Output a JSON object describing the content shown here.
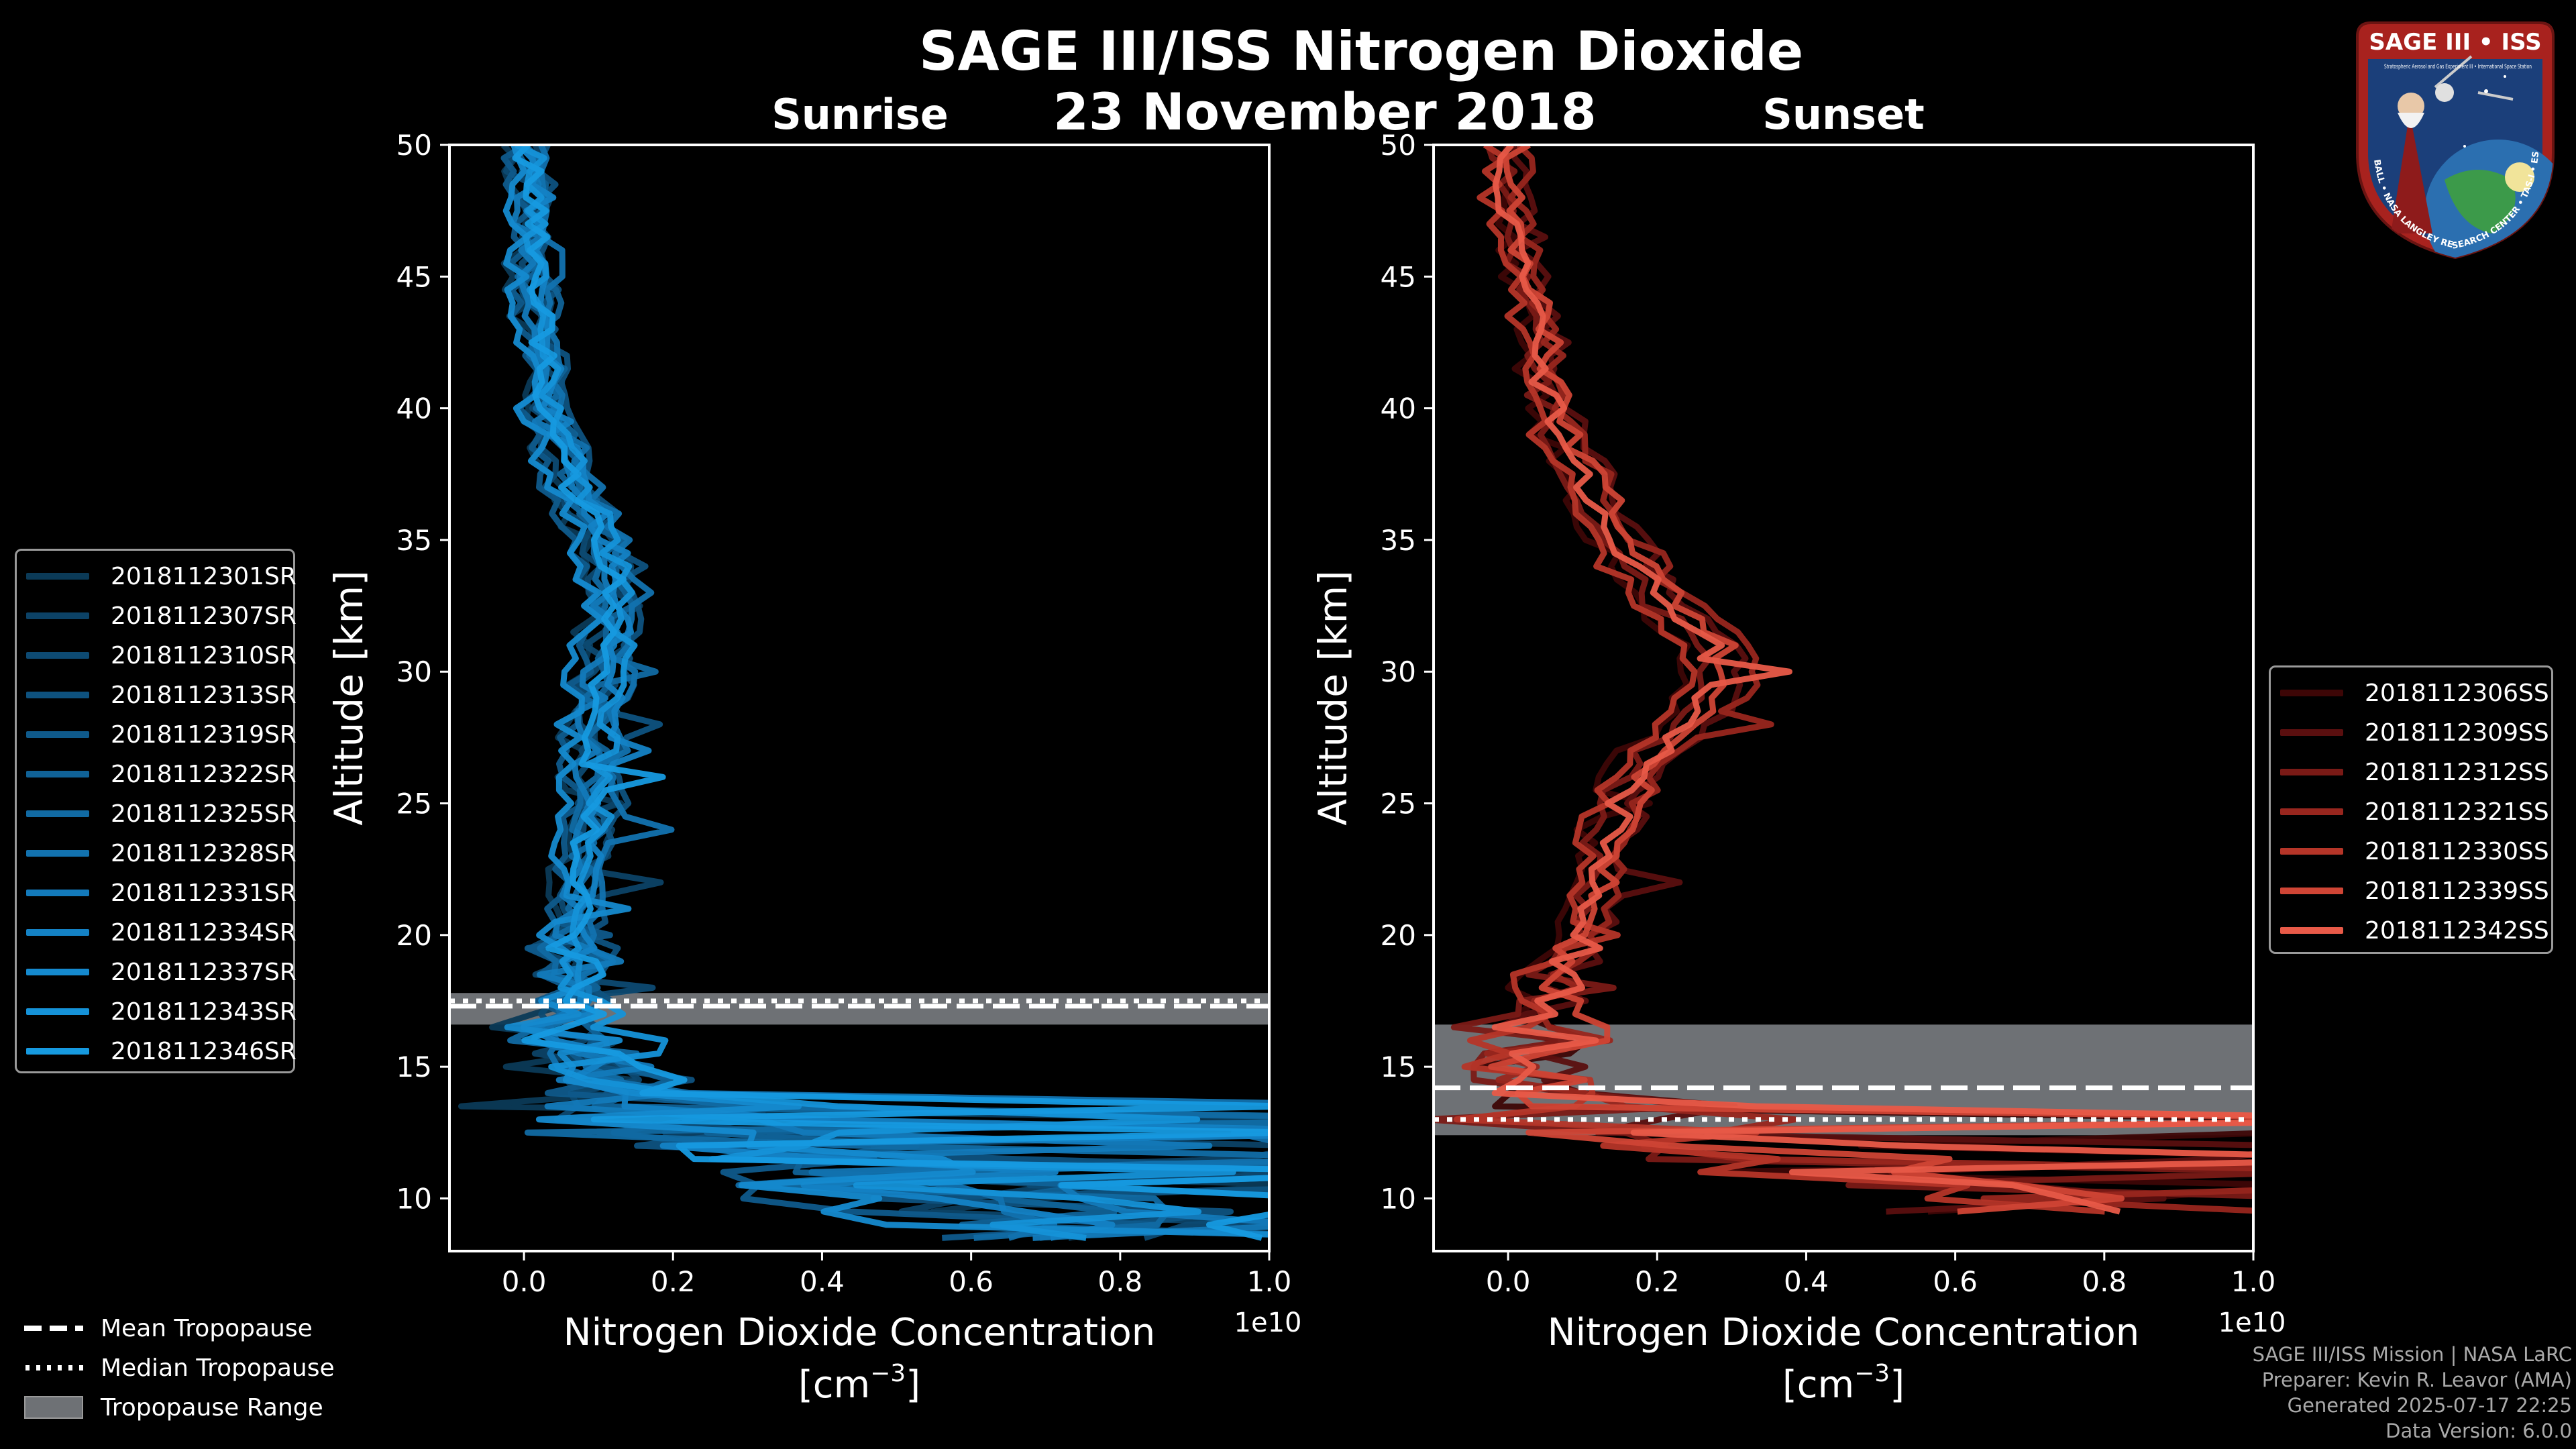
{
  "title": "SAGE III/ISS Nitrogen Dioxide",
  "date": "23 November 2018",
  "panels": {
    "sunrise_title": "Sunrise",
    "sunset_title": "Sunset"
  },
  "badge": {
    "name": "SAGE III • ISS",
    "ring_text": "BALL • NASA LANGLEY RESEARCH CENTER • TAS-I • ESA",
    "subtitle": "Stratospheric Aerosol and Gas Experiment III • International Space Station"
  },
  "footer": {
    "mission": "SAGE III/ISS Mission | NASA LaRC",
    "preparer": "Preparer: Kevin R. Leavor (AMA)",
    "generated": "Generated 2025-07-17 22:25",
    "version": "Data Version: 6.0.0"
  },
  "tropopause_legend": {
    "mean": "Mean Tropopause",
    "median": "Median Tropopause",
    "range": "Tropopause Range"
  },
  "chart_data": [
    {
      "type": "line",
      "title": "Sunrise",
      "xlabel": "Nitrogen Dioxide Concentration",
      "xlabel_units": "[cm",
      "xlabel_exp": "−3",
      "xlabel_close": "]",
      "ylabel": "Altitude [km]",
      "x_scale_label": "1e10",
      "xlim": [
        -0.1,
        1.0
      ],
      "ylim": [
        8,
        50
      ],
      "xticks": [
        0.0,
        0.2,
        0.4,
        0.6,
        0.8,
        1.0
      ],
      "xtick_labels": [
        "0.0",
        "0.2",
        "0.4",
        "0.6",
        "0.8",
        "1.0"
      ],
      "yticks": [
        10,
        15,
        20,
        25,
        30,
        35,
        40,
        45,
        50
      ],
      "ytick_labels": [
        "10",
        "15",
        "20",
        "25",
        "30",
        "35",
        "40",
        "45",
        "50"
      ],
      "tropopause": {
        "mean": 17.3,
        "median": 17.5,
        "range": [
          16.6,
          17.8
        ]
      },
      "profile": {
        "alt": [
          50,
          49,
          48,
          47,
          46,
          45,
          44,
          43,
          42,
          41,
          40,
          39,
          38,
          37,
          36,
          35,
          34,
          33,
          32,
          31,
          30,
          29,
          28,
          27,
          26,
          25,
          24,
          23,
          22,
          21,
          20,
          19,
          18,
          17,
          16,
          15,
          14,
          13,
          12,
          11,
          10,
          9
        ],
        "val": [
          0.0,
          0.0,
          0.01,
          0.01,
          0.01,
          0.01,
          0.02,
          0.02,
          0.02,
          0.03,
          0.03,
          0.04,
          0.05,
          0.06,
          0.08,
          0.1,
          0.11,
          0.12,
          0.12,
          0.11,
          0.1,
          0.1,
          0.09,
          0.09,
          0.09,
          0.09,
          0.08,
          0.08,
          0.07,
          0.07,
          0.06,
          0.06,
          0.07,
          0.07,
          0.08,
          0.1,
          0.14,
          0.2,
          0.3,
          0.45,
          0.6,
          0.75
        ]
      },
      "series": [
        {
          "name": "2018112301SR",
          "color": "#0b3a57",
          "off": -0.02,
          "w": 0.92,
          "b1": 25,
          "b2": 20
        },
        {
          "name": "2018112307SR",
          "color": "#0c4266",
          "off": 0.015,
          "w": 1.06,
          "b1": 22,
          "b2": 35
        },
        {
          "name": "2018112310SR",
          "color": "#0d4a72",
          "off": -0.01,
          "w": 0.95,
          "b1": 18,
          "b2": 15
        },
        {
          "name": "2018112313SR",
          "color": "#0e527f",
          "off": 0.02,
          "w": 1.12,
          "b1": 28,
          "b2": 40
        },
        {
          "name": "2018112319SR",
          "color": "#0f5a8b",
          "off": -0.015,
          "w": 0.88,
          "b1": 20,
          "b2": 25
        },
        {
          "name": "2018112322SR",
          "color": "#106297",
          "off": 0.01,
          "w": 1.02,
          "b1": 16,
          "b2": 18
        },
        {
          "name": "2018112325SR",
          "color": "#116aa3",
          "off": 0.0,
          "w": 1.0,
          "b1": 30,
          "b2": 50
        },
        {
          "name": "2018112328SR",
          "color": "#1272af",
          "off": 0.025,
          "w": 1.08,
          "b1": 24,
          "b2": 30
        },
        {
          "name": "2018112331SR",
          "color": "#137abb",
          "off": -0.005,
          "w": 0.97,
          "b1": 19,
          "b2": 22
        },
        {
          "name": "2018112334SR",
          "color": "#1482c5",
          "off": 0.012,
          "w": 1.04,
          "b1": 27,
          "b2": 45
        },
        {
          "name": "2018112337SR",
          "color": "#158acf",
          "off": -0.018,
          "w": 0.9,
          "b1": 21,
          "b2": 28
        },
        {
          "name": "2018112343SR",
          "color": "#1592d8",
          "off": 0.008,
          "w": 1.1,
          "b1": 17,
          "b2": 33
        },
        {
          "name": "2018112346SR",
          "color": "#169ae0",
          "off": 0.004,
          "w": 1.0,
          "b1": 26,
          "b2": 38
        }
      ]
    },
    {
      "type": "line",
      "title": "Sunset",
      "xlabel": "Nitrogen Dioxide Concentration",
      "xlabel_units": "[cm",
      "xlabel_exp": "−3",
      "xlabel_close": "]",
      "ylabel": "Altitude [km]",
      "x_scale_label": "1e10",
      "xlim": [
        -0.1,
        1.0
      ],
      "ylim": [
        8,
        50
      ],
      "xticks": [
        0.0,
        0.2,
        0.4,
        0.6,
        0.8,
        1.0
      ],
      "xtick_labels": [
        "0.0",
        "0.2",
        "0.4",
        "0.6",
        "0.8",
        "1.0"
      ],
      "yticks": [
        10,
        15,
        20,
        25,
        30,
        35,
        40,
        45,
        50
      ],
      "ytick_labels": [
        "10",
        "15",
        "20",
        "25",
        "30",
        "35",
        "40",
        "45",
        "50"
      ],
      "tropopause": {
        "mean": 14.2,
        "median": 13.0,
        "range": [
          12.4,
          16.6
        ]
      },
      "profile": {
        "alt": [
          50,
          49,
          48,
          47,
          46,
          45,
          44,
          43,
          42,
          41,
          40,
          39,
          38,
          37,
          36,
          35,
          34,
          33,
          32,
          31,
          30,
          29,
          28,
          27,
          26,
          25,
          24,
          23,
          22,
          21,
          20,
          19,
          18,
          17,
          16,
          15,
          14,
          13,
          12,
          11,
          10
        ],
        "val": [
          0.0,
          0.0,
          0.0,
          0.01,
          0.01,
          0.02,
          0.03,
          0.04,
          0.04,
          0.05,
          0.06,
          0.07,
          0.09,
          0.11,
          0.13,
          0.15,
          0.17,
          0.2,
          0.24,
          0.27,
          0.28,
          0.27,
          0.24,
          0.2,
          0.17,
          0.15,
          0.14,
          0.13,
          0.12,
          0.11,
          0.1,
          0.08,
          0.06,
          0.04,
          0.03,
          0.04,
          0.07,
          0.12,
          0.3,
          0.55,
          0.7
        ]
      },
      "series": [
        {
          "name": "2018112306SS",
          "color": "#3d0606",
          "off": -0.015,
          "w": 0.9,
          "b1": 25,
          "b2": 20
        },
        {
          "name": "2018112309SS",
          "color": "#5a0f0f",
          "off": 0.02,
          "w": 1.05,
          "b1": 22,
          "b2": 30
        },
        {
          "name": "2018112312SS",
          "color": "#7a1a16",
          "off": -0.01,
          "w": 0.95,
          "b1": 18,
          "b2": 15
        },
        {
          "name": "2018112321SS",
          "color": "#98261e",
          "off": 0.015,
          "w": 1.1,
          "b1": 28,
          "b2": 40
        },
        {
          "name": "2018112330SS",
          "color": "#b53528",
          "off": -0.02,
          "w": 0.92,
          "b1": 20,
          "b2": 25
        },
        {
          "name": "2018112339SS",
          "color": "#cf4535",
          "off": 0.01,
          "w": 1.03,
          "b1": 16,
          "b2": 35
        },
        {
          "name": "2018112342SS",
          "color": "#e85a48",
          "off": 0.0,
          "w": 1.0,
          "b1": 30,
          "b2": 50
        }
      ]
    }
  ]
}
